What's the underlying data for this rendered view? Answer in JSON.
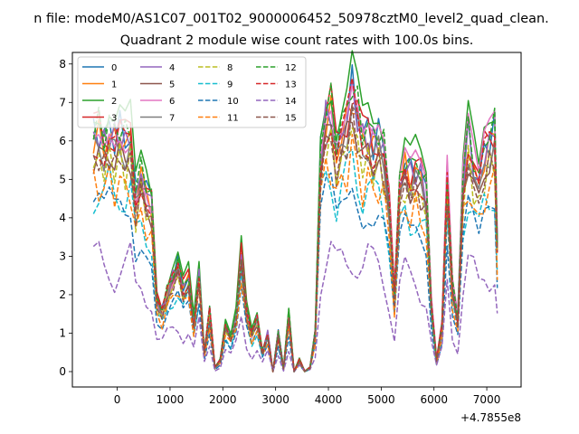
{
  "figure": {
    "suptitle": "n file: modeM0/AS1C07_001T02_9000006452_50978cztM0_level2_quad_clean.",
    "title": "Quadrant 2 module wise count rates with 100.0s bins.",
    "offset_label": "+4.7855e8"
  },
  "chart_data": {
    "type": "line",
    "title": "Quadrant 2 module wise count rates with 100.0s bins.",
    "xlabel": "",
    "ylabel": "",
    "x_offset": 478550000,
    "xlim": [
      -850,
      7650
    ],
    "ylim": [
      -0.4,
      8.3
    ],
    "xticks": [
      0,
      1000,
      2000,
      3000,
      4000,
      5000,
      6000,
      7000
    ],
    "yticks": [
      0,
      1,
      2,
      3,
      4,
      5,
      6,
      7,
      8
    ],
    "legend": {
      "placement": "top-left",
      "ncol": 4
    },
    "x": [
      -450,
      -350,
      -250,
      -150,
      -50,
      50,
      150,
      250,
      350,
      450,
      550,
      650,
      750,
      850,
      950,
      1050,
      1150,
      1250,
      1350,
      1450,
      1550,
      1650,
      1750,
      1850,
      1950,
      2050,
      2150,
      2250,
      2350,
      2450,
      2550,
      2650,
      2750,
      2850,
      2950,
      3050,
      3150,
      3250,
      3350,
      3450,
      3550,
      3650,
      3750,
      3850,
      3950,
      4050,
      4150,
      4250,
      4350,
      4450,
      4550,
      4650,
      4750,
      4850,
      4950,
      5050,
      5150,
      5250,
      5350,
      5450,
      5550,
      5650,
      5750,
      5850,
      5950,
      6050,
      6150,
      6250,
      6350,
      6450,
      6550,
      6650,
      6750,
      6850,
      6950,
      7050,
      7150,
      7200
    ],
    "base_profile": [
      6.2,
      6.3,
      6.0,
      6.4,
      6.1,
      6.3,
      6.0,
      6.2,
      4.6,
      5.2,
      4.9,
      4.4,
      1.9,
      1.6,
      2.1,
      2.5,
      2.8,
      2.2,
      2.5,
      1.3,
      2.6,
      0.5,
      1.6,
      0.1,
      0.3,
      1.3,
      0.9,
      1.5,
      3.1,
      1.6,
      1.0,
      1.4,
      0.5,
      1.0,
      0.0,
      1.0,
      0.1,
      1.5,
      0.0,
      0.3,
      0.0,
      0.1,
      1.0,
      5.8,
      6.7,
      6.9,
      5.8,
      6.3,
      6.7,
      7.4,
      6.8,
      6.1,
      6.3,
      6.0,
      6.2,
      5.8,
      4.5,
      2.0,
      4.8,
      5.5,
      5.2,
      5.4,
      5.1,
      4.7,
      1.8,
      0.3,
      1.2,
      5.2,
      2.2,
      1.4,
      5.0,
      6.2,
      5.5,
      4.8,
      5.8,
      6.1,
      6.3,
      3.4
    ],
    "series": [
      {
        "name": "0",
        "color": "#1f77b4",
        "dash": "solid",
        "scale": 1.0,
        "jitter": 0.08
      },
      {
        "name": "1",
        "color": "#ff7f0e",
        "dash": "solid",
        "scale": 0.97,
        "jitter": 0.07
      },
      {
        "name": "2",
        "color": "#2ca02c",
        "dash": "solid",
        "scale": 1.08,
        "jitter": 0.06
      },
      {
        "name": "3",
        "color": "#d62728",
        "dash": "solid",
        "scale": 1.0,
        "jitter": 0.09
      },
      {
        "name": "4",
        "color": "#9467bd",
        "dash": "solid",
        "scale": 0.98,
        "jitter": 0.08
      },
      {
        "name": "5",
        "color": "#8c564b",
        "dash": "solid",
        "scale": 0.9,
        "jitter": 0.07
      },
      {
        "name": "6",
        "color": "#e377c2",
        "dash": "solid",
        "scale": 0.99,
        "jitter": 0.09
      },
      {
        "name": "7",
        "color": "#7f7f7f",
        "dash": "solid",
        "scale": 0.93,
        "jitter": 0.06
      },
      {
        "name": "8",
        "color": "#bcbd22",
        "dash": "dashed",
        "scale": 0.87,
        "jitter": 0.08
      },
      {
        "name": "9",
        "color": "#17becf",
        "dash": "dashed",
        "scale": 0.75,
        "jitter": 0.09
      },
      {
        "name": "10",
        "color": "#1f77b4",
        "dash": "dashed",
        "scale": 0.68,
        "jitter": 0.07
      },
      {
        "name": "11",
        "color": "#ff7f0e",
        "dash": "dashed",
        "scale": 0.78,
        "jitter": 0.08
      },
      {
        "name": "12",
        "color": "#2ca02c",
        "dash": "dashed",
        "scale": 1.02,
        "jitter": 0.07
      },
      {
        "name": "13",
        "color": "#d62728",
        "dash": "dashed",
        "scale": 0.96,
        "jitter": 0.08
      },
      {
        "name": "14",
        "color": "#9467bd",
        "dash": "dashed",
        "scale": 0.44,
        "jitter": 0.1
      },
      {
        "name": "15",
        "color": "#8c564b",
        "dash": "dashed",
        "scale": 0.88,
        "jitter": 0.06
      }
    ]
  }
}
